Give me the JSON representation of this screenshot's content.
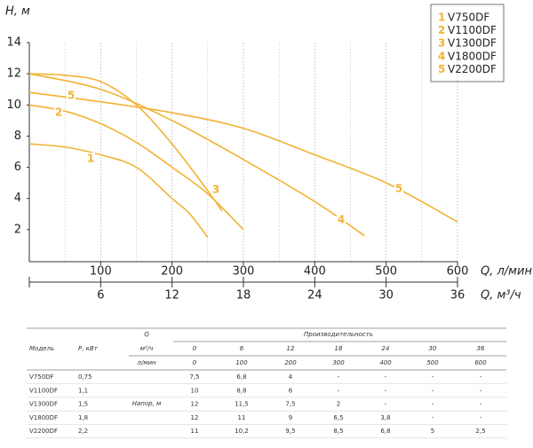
{
  "chart_data": {
    "type": "line",
    "ylabel": "H, м",
    "xlabel": "Q, л/мин",
    "x2label": "Q, м³/ч",
    "xlim": [
      0,
      600
    ],
    "xticks": [
      100,
      200,
      300,
      400,
      500,
      600
    ],
    "x2lim": [
      0,
      36
    ],
    "x2ticks": [
      6,
      12,
      18,
      24,
      30,
      36
    ],
    "ylim": [
      0,
      14
    ],
    "yticks": [
      2,
      4,
      6,
      8,
      10,
      12,
      14
    ],
    "grid": true,
    "series": [
      {
        "name": "V750DF",
        "label": "1",
        "color": "#f2b233",
        "x": [
          0,
          50,
          100,
          150,
          200,
          225,
          250
        ],
        "values": [
          7.5,
          7.3,
          6.8,
          6.0,
          4.0,
          3.0,
          1.5
        ]
      },
      {
        "name": "V1100DF",
        "label": "2",
        "color": "#f2b233",
        "x": [
          0,
          50,
          100,
          150,
          200,
          250,
          300
        ],
        "values": [
          10,
          9.6,
          8.8,
          7.6,
          6,
          4.3,
          2
        ]
      },
      {
        "name": "V1300DF",
        "label": "3",
        "color": "#f2b233",
        "x": [
          0,
          50,
          100,
          150,
          200,
          250,
          270
        ],
        "values": [
          12,
          11.9,
          11.5,
          10,
          7.5,
          4.5,
          3.2
        ]
      },
      {
        "name": "V1800DF",
        "label": "4",
        "color": "#f2b233",
        "x": [
          0,
          100,
          200,
          300,
          400,
          470
        ],
        "values": [
          12,
          11,
          9,
          6.5,
          3.8,
          1.6
        ]
      },
      {
        "name": "V2200DF",
        "label": "5",
        "color": "#f2b233",
        "x": [
          0,
          100,
          200,
          300,
          400,
          500,
          600
        ],
        "values": [
          10.8,
          10.2,
          9.5,
          8.5,
          6.8,
          5,
          2.5
        ]
      }
    ]
  },
  "table": {
    "header": {
      "model": "Модель",
      "power": "Р, кВт",
      "q": "Q",
      "perf": "Производительность",
      "unit_m3": "м³/ч",
      "unit_l": "л/мин",
      "flows_m3": [
        "0",
        "6",
        "12",
        "18",
        "24",
        "30",
        "36"
      ],
      "flows_l": [
        "0",
        "100",
        "200",
        "300",
        "400",
        "500",
        "600"
      ]
    },
    "head_label": "Напор, м",
    "rows": [
      [
        "V750DF",
        "0,75",
        "7,5",
        "6,8",
        "4",
        "-",
        "-",
        "-",
        "-"
      ],
      [
        "V1100DF",
        "1,1",
        "10",
        "8,8",
        "6",
        "-",
        "-",
        "-",
        "-"
      ],
      [
        "V1300DF",
        "1,5",
        "12",
        "11,5",
        "7,5",
        "2",
        "-",
        "-",
        "-"
      ],
      [
        "V1800DF",
        "1,8",
        "12",
        "11",
        "9",
        "6,5",
        "3,8",
        "-",
        "-"
      ],
      [
        "V2200DF",
        "2,2",
        "11",
        "10,2",
        "9,5",
        "8,5",
        "6,8",
        "5",
        "2,5"
      ]
    ]
  }
}
